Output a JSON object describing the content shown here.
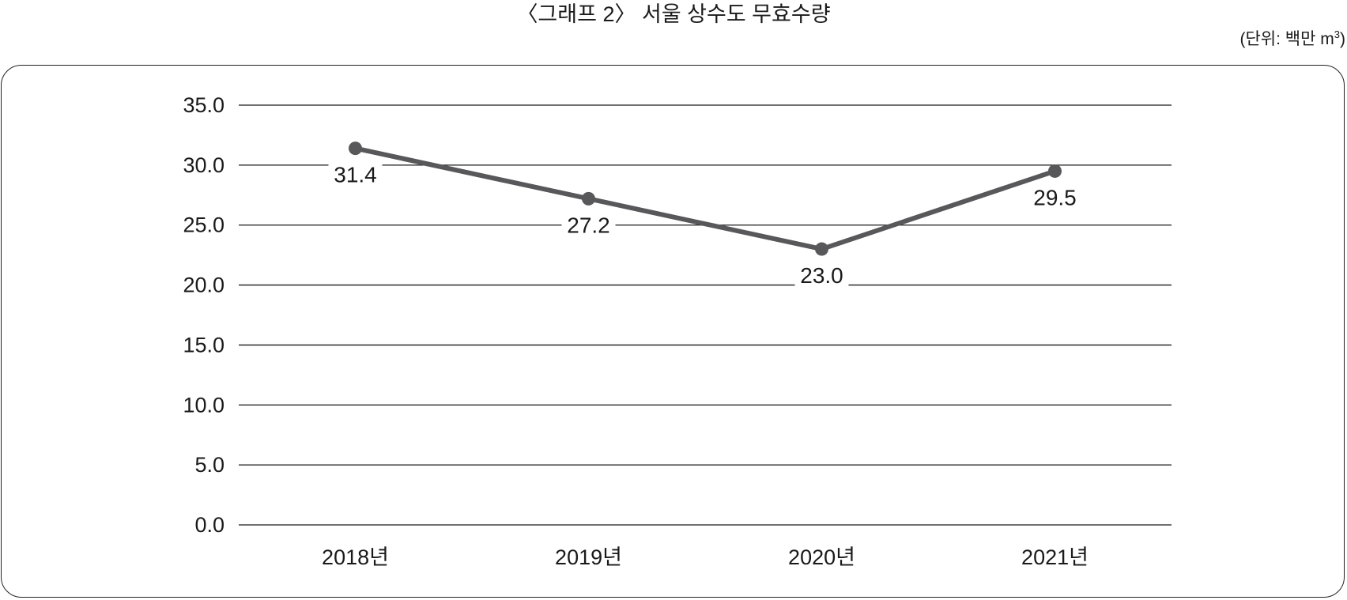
{
  "header": {
    "title": "〈그래프 2〉 서울 상수도 무효수량",
    "unit_prefix": "(단위: 백만 m",
    "unit_sup": "3",
    "unit_suffix": ")"
  },
  "style": {
    "line_color": "#58575a",
    "grid_color": "#1a1a1a"
  },
  "chart_data": {
    "type": "line",
    "title": "〈그래프 2〉 서울 상수도 무효수량",
    "subtitle": "(단위: 백만 m3)",
    "xlabel": "",
    "ylabel": "",
    "categories": [
      "2018년",
      "2019년",
      "2020년",
      "2021년"
    ],
    "series": [
      {
        "name": "무효수량",
        "values": [
          31.4,
          27.2,
          23.0,
          29.5
        ]
      }
    ],
    "data_labels": [
      "31.4",
      "27.2",
      "23.0",
      "29.5"
    ],
    "ylim": [
      0,
      35
    ],
    "yticks": [
      "0.0",
      "5.0",
      "10.0",
      "15.0",
      "20.0",
      "25.0",
      "30.0",
      "35.0"
    ],
    "grid": true,
    "legend": "none"
  }
}
